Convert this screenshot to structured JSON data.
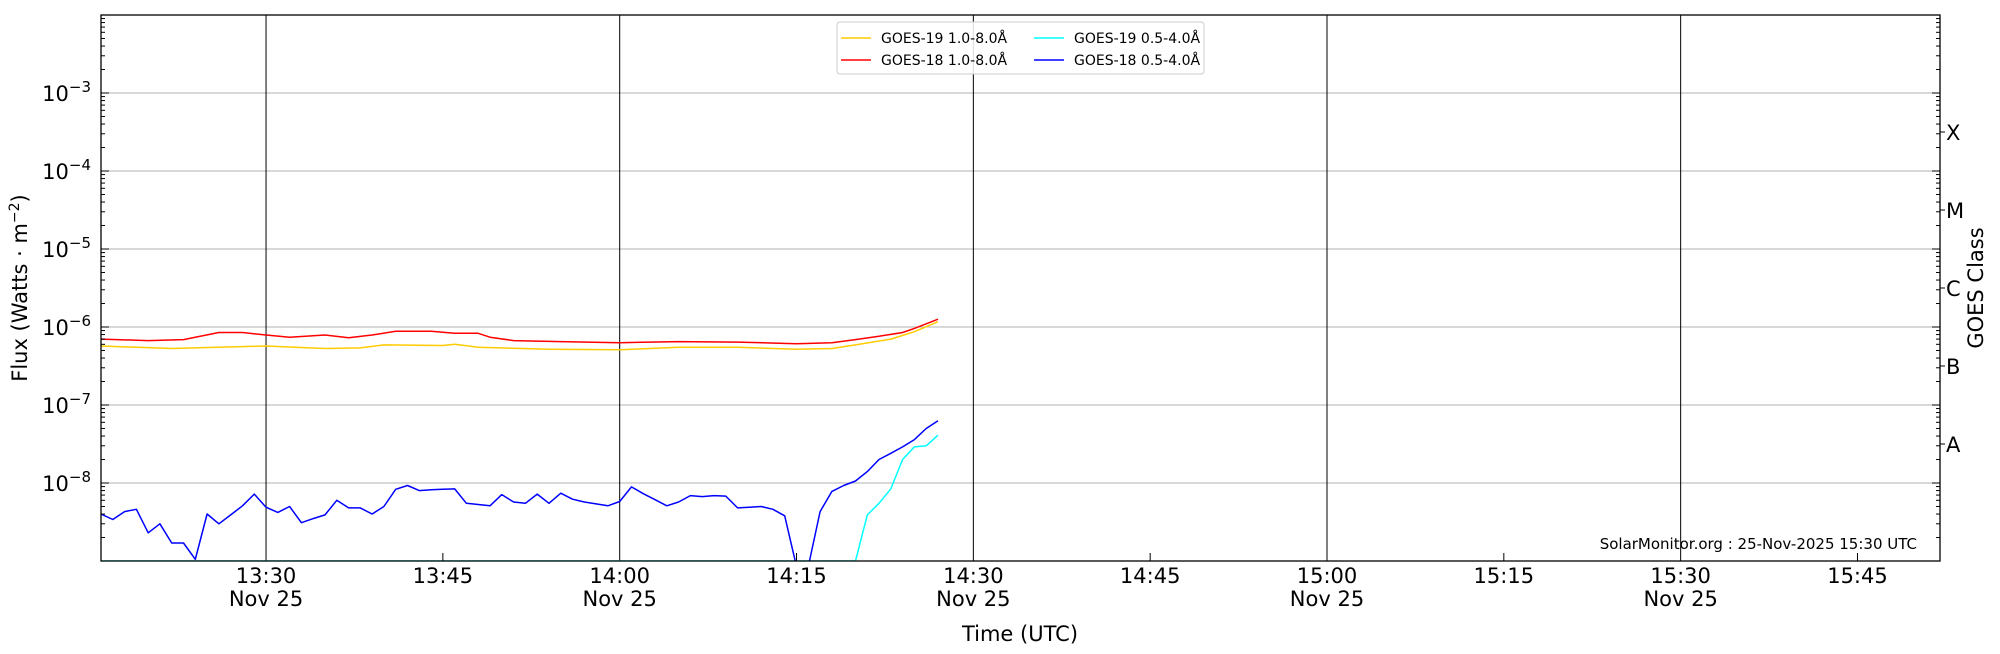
{
  "chart_data": {
    "type": "line",
    "xlabel": "Time (UTC)",
    "ylabel": "Flux (Watts · m",
    "ylabel_sup": "−2",
    "ylabel_end": ")",
    "y2label": "GOES Class",
    "yscale": "log",
    "ylim": [
      1e-09,
      0.01
    ],
    "xlim": [
      "13:16",
      "15:52"
    ],
    "grid": true,
    "legend_position": "top-center",
    "y_ticks": [
      {
        "value": 0.001,
        "base": "10",
        "exp": "−3"
      },
      {
        "value": 0.0001,
        "base": "10",
        "exp": "−4"
      },
      {
        "value": 1e-05,
        "base": "10",
        "exp": "−5"
      },
      {
        "value": 1e-06,
        "base": "10",
        "exp": "−6"
      },
      {
        "value": 1e-07,
        "base": "10",
        "exp": "−7"
      },
      {
        "value": 1e-08,
        "base": "10",
        "exp": "−8"
      }
    ],
    "class_ticks": [
      {
        "label": "X",
        "value": 0.0003162
      },
      {
        "label": "M",
        "value": 3.162e-05
      },
      {
        "label": "C",
        "value": 3.162e-06
      },
      {
        "label": "B",
        "value": 3.162e-07
      },
      {
        "label": "A",
        "value": 3.162e-08
      }
    ],
    "x_ticks": [
      {
        "time": "13:30",
        "date": "Nov 25",
        "major": true
      },
      {
        "time": "13:45",
        "date": "",
        "major": false
      },
      {
        "time": "14:00",
        "date": "Nov 25",
        "major": true
      },
      {
        "time": "14:15",
        "date": "",
        "major": false
      },
      {
        "time": "14:30",
        "date": "Nov 25",
        "major": true
      },
      {
        "time": "14:45",
        "date": "",
        "major": false
      },
      {
        "time": "15:00",
        "date": "Nov 25",
        "major": true
      },
      {
        "time": "15:15",
        "date": "",
        "major": false
      },
      {
        "time": "15:30",
        "date": "Nov 25",
        "major": true
      },
      {
        "time": "15:45",
        "date": "",
        "major": false
      }
    ],
    "series": [
      {
        "name": "GOES-19 1.0-8.0Å",
        "color": "#FFCC00",
        "x": [
          "13:16",
          "13:22",
          "13:30",
          "13:35",
          "13:38",
          "13:40",
          "13:45",
          "13:46",
          "13:48",
          "13:54",
          "14:00",
          "14:05",
          "14:10",
          "14:15",
          "14:18",
          "14:20",
          "14:23",
          "14:25",
          "14:27"
        ],
        "y": [
          5.7e-07,
          5.3e-07,
          5.7e-07,
          5.3e-07,
          5.4e-07,
          5.9e-07,
          5.8e-07,
          6e-07,
          5.5e-07,
          5.2e-07,
          5.1e-07,
          5.5e-07,
          5.5e-07,
          5.2e-07,
          5.3e-07,
          5.9e-07,
          7e-07,
          8.7e-07,
          1.17e-06
        ]
      },
      {
        "name": "GOES-18 1.0-8.0Å",
        "color": "#FF0000",
        "x": [
          "13:16",
          "13:20",
          "13:23",
          "13:26",
          "13:28",
          "13:30",
          "13:32",
          "13:35",
          "13:37",
          "13:39",
          "13:41",
          "13:44",
          "13:46",
          "13:48",
          "13:49",
          "13:51",
          "13:55",
          "14:00",
          "14:05",
          "14:10",
          "14:15",
          "14:18",
          "14:20",
          "14:22",
          "14:24",
          "14:25",
          "14:27"
        ],
        "y": [
          7e-07,
          6.7e-07,
          6.9e-07,
          8.5e-07,
          8.5e-07,
          7.9e-07,
          7.4e-07,
          7.9e-07,
          7.3e-07,
          7.9e-07,
          8.8e-07,
          8.8e-07,
          8.3e-07,
          8.3e-07,
          7.4e-07,
          6.7e-07,
          6.5e-07,
          6.3e-07,
          6.5e-07,
          6.4e-07,
          6.1e-07,
          6.3e-07,
          6.9e-07,
          7.6e-07,
          8.5e-07,
          9.6e-07,
          1.26e-06
        ]
      },
      {
        "name": "GOES-19 0.5-4.0Å",
        "color": "#00FFFF",
        "x": [
          "13:16",
          "14:20",
          "14:21",
          "14:22",
          "14:23",
          "14:24",
          "14:25",
          "14:26",
          "14:27"
        ],
        "y": [
          1e-09,
          1e-09,
          3.9e-09,
          5.5e-09,
          8.4e-09,
          2e-08,
          2.9e-08,
          3e-08,
          4.1e-08
        ]
      },
      {
        "name": "GOES-18 0.5-4.0Å",
        "color": "#0000FF",
        "x_start": "13:16",
        "x_step_minutes": 1,
        "y": [
          4e-09,
          3.4e-09,
          4.3e-09,
          4.6e-09,
          2.3e-09,
          3e-09,
          1.7e-09,
          1.7e-09,
          1.05e-09,
          4e-09,
          3e-09,
          3.9e-09,
          5.1e-09,
          7.2e-09,
          4.9e-09,
          4.2e-09,
          5e-09,
          3.1e-09,
          3.5e-09,
          3.9e-09,
          6e-09,
          4.8e-09,
          4.8e-09,
          4e-09,
          5e-09,
          8.3e-09,
          9.3e-09,
          8e-09,
          8.2e-09,
          8.3e-09,
          8.4e-09,
          5.5e-09,
          5.3e-09,
          5.1e-09,
          7.1e-09,
          5.7e-09,
          5.5e-09,
          7.2e-09,
          5.5e-09,
          7.4e-09,
          6.2e-09,
          5.7e-09,
          5.4e-09,
          5.1e-09,
          5.8e-09,
          8.9e-09,
          7.3e-09,
          6.1e-09,
          5.1e-09,
          5.7e-09,
          6.9e-09,
          6.7e-09,
          6.9e-09,
          6.8e-09,
          4.8e-09,
          4.9e-09,
          5e-09,
          4.6e-09,
          3.8e-09,
          8.5e-10,
          8.5e-10,
          4.3e-09,
          7.8e-09,
          9.3e-09,
          1.06e-08,
          1.4e-08,
          2e-08,
          2.4e-08,
          2.9e-08,
          3.6e-08,
          5e-08,
          6.3e-08
        ]
      }
    ],
    "annotation": "SolarMonitor.org : 25-Nov-2025 15:30 UTC"
  }
}
